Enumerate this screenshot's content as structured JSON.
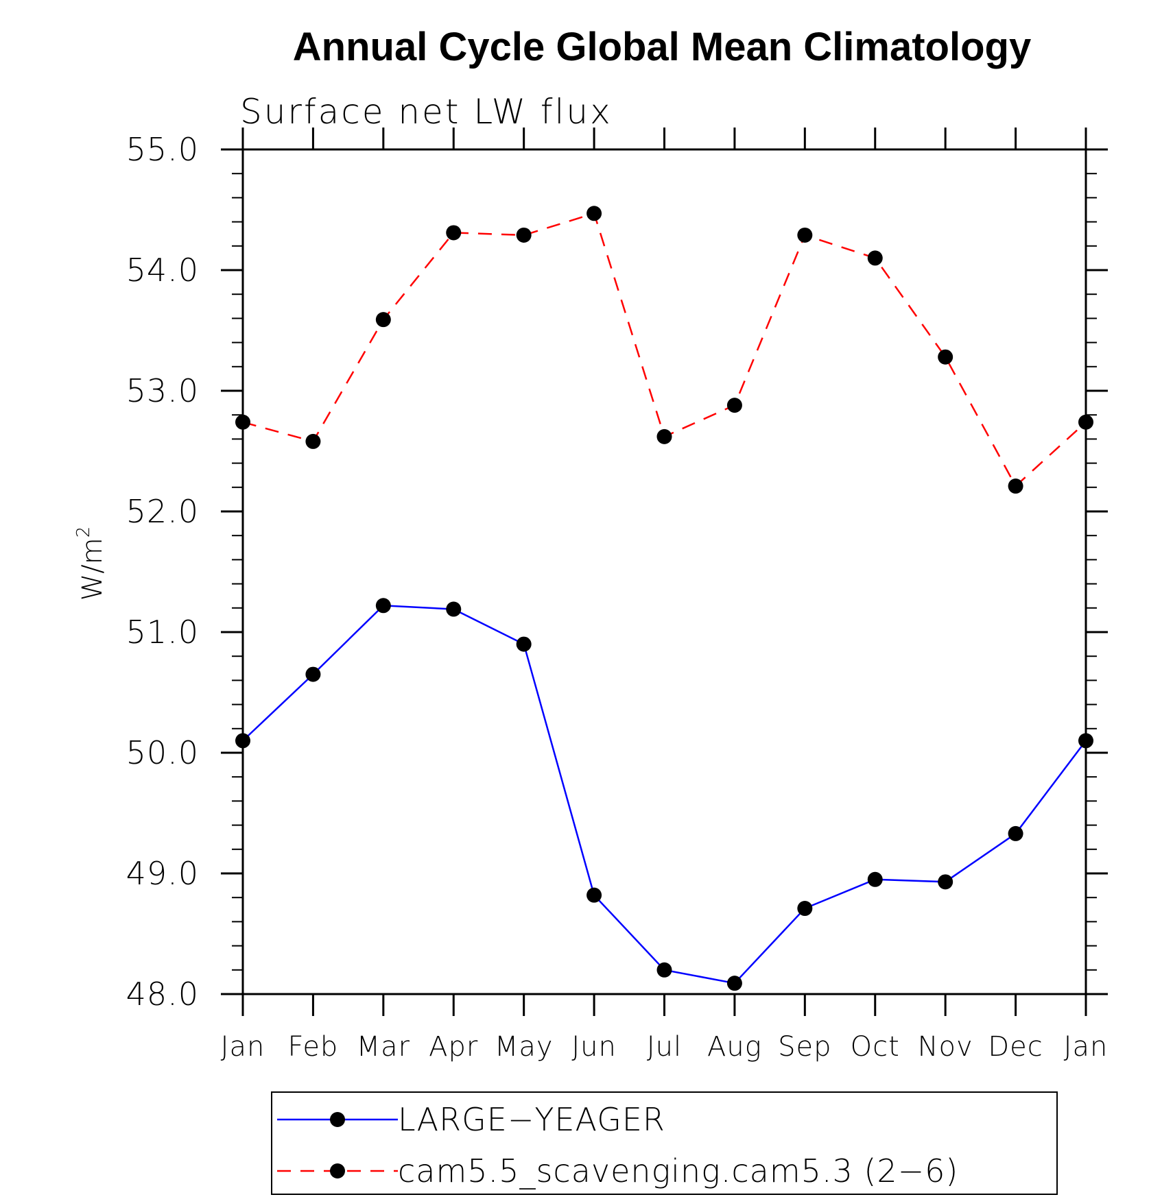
{
  "chart_data": {
    "type": "line",
    "title": "Annual Cycle Global Mean Climatology",
    "subtitle": "Surface net LW flux",
    "ylabel": "W/m",
    "ylabel_sup": "2",
    "xlabel": "",
    "categories": [
      "Jan",
      "Feb",
      "Mar",
      "Apr",
      "May",
      "Jun",
      "Jul",
      "Aug",
      "Sep",
      "Oct",
      "Nov",
      "Dec",
      "Jan"
    ],
    "ylim": [
      48.0,
      55.0
    ],
    "yticks": [
      "48.0",
      "49.0",
      "50.0",
      "51.0",
      "52.0",
      "53.0",
      "54.0",
      "55.0"
    ],
    "grid": false,
    "legend_position": "bottom",
    "series": [
      {
        "name": "LARGE−YEAGER",
        "color": "#0000ff",
        "dash": "solid",
        "marker": "filled-circle",
        "values": [
          50.1,
          50.65,
          51.22,
          51.19,
          50.9,
          48.82,
          48.2,
          48.09,
          48.71,
          48.95,
          48.93,
          49.33,
          50.1
        ]
      },
      {
        "name": "cam5.5_scavenging.cam5.3 (2−6)",
        "color": "#ff0000",
        "dash": "dashed",
        "marker": "filled-circle",
        "values": [
          52.74,
          52.58,
          53.59,
          54.31,
          54.29,
          54.47,
          52.62,
          52.88,
          54.29,
          54.1,
          53.28,
          52.21,
          52.74
        ]
      }
    ]
  }
}
